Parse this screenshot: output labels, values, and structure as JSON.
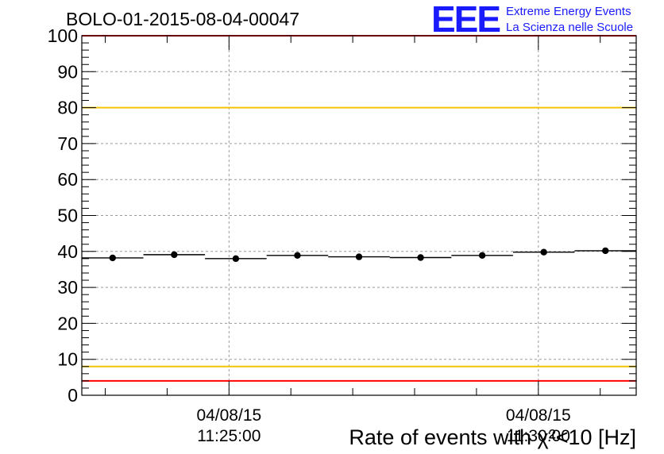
{
  "chart_data": {
    "type": "scatter",
    "title": "BOLO-01-2015-08-04-00047",
    "xlabel": "Rate of events with χ²<10 [Hz]",
    "ylabel": "",
    "ylim": [
      0,
      100
    ],
    "y_ticks": [
      "0",
      "10",
      "20",
      "30",
      "40",
      "50",
      "60",
      "70",
      "80",
      "90",
      "100"
    ],
    "x_tick_labels": [
      {
        "date": "04/08/15",
        "time": "11:25:00"
      },
      {
        "date": "04/08/15",
        "time": "11:30:00"
      }
    ],
    "grid": true,
    "bins": 9,
    "values": [
      38.2,
      39.1,
      38.0,
      38.9,
      38.5,
      38.3,
      38.9,
      39.8,
      40.2
    ],
    "reference_lines": [
      {
        "y": 100,
        "color": "#ff0000"
      },
      {
        "y": 80,
        "color": "#f5c400"
      },
      {
        "y": 8,
        "color": "#f5c400"
      },
      {
        "y": 4,
        "color": "#ff0000"
      }
    ]
  },
  "logo": {
    "mark": "EEE",
    "line1": "Extreme Energy Events",
    "line2": "La Scienza nelle Scuole",
    "color": "#1a1aff"
  }
}
